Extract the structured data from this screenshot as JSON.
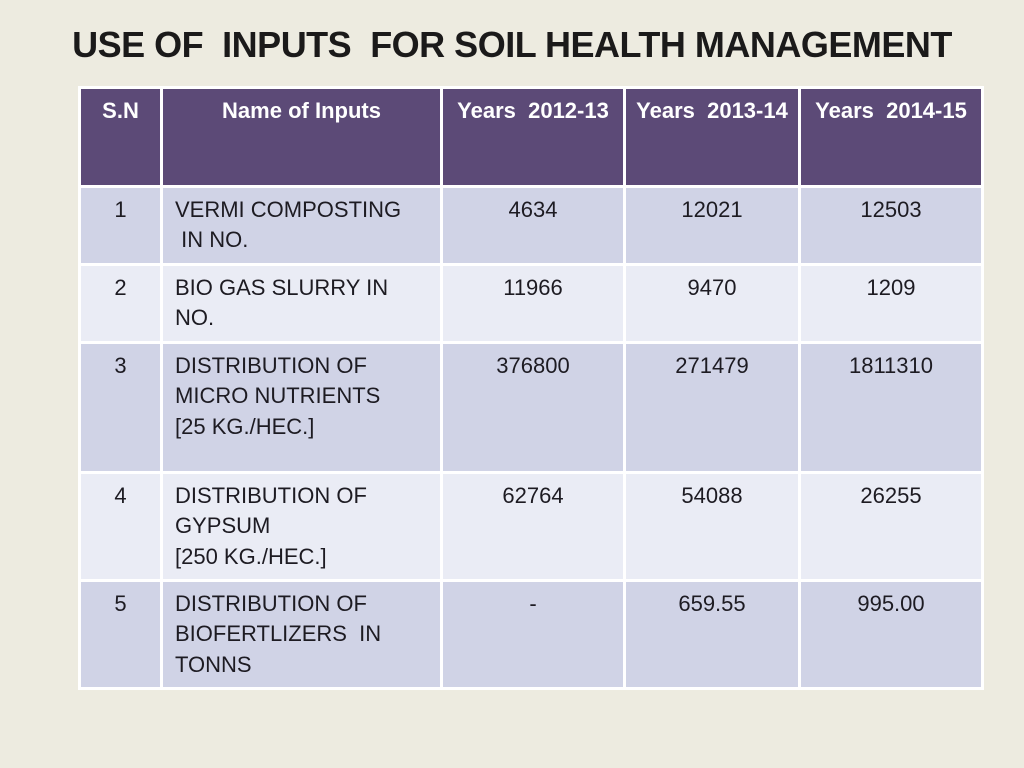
{
  "slide": {
    "title": "USE OF  INPUTS  FOR SOIL HEALTH MANAGEMENT",
    "colors": {
      "background": "#edebe0",
      "header_bg": "#5c4a77",
      "header_text": "#ffffff",
      "row_odd_bg": "#d0d3e6",
      "row_even_bg": "#eaecf5",
      "border": "#ffffff",
      "body_text": "#1d1b22",
      "title_text": "#1b1a1a"
    },
    "table": {
      "columns": [
        "S.N",
        "Name of Inputs",
        "Years  2012-13",
        "Years  2013-14",
        "Years  2014-15"
      ],
      "rows": [
        {
          "sn": "1",
          "name": "VERMI COMPOSTING\n IN NO.",
          "values": [
            "4634",
            "12021",
            "12503"
          ]
        },
        {
          "sn": "2",
          "name": "BIO GAS SLURRY IN NO.",
          "values": [
            "11966",
            "9470",
            "1209"
          ]
        },
        {
          "sn": "3",
          "name": "DISTRIBUTION OF\nMICRO NUTRIENTS\n[25 KG./HEC.]",
          "values": [
            "376800",
            "271479",
            "1811310"
          ]
        },
        {
          "sn": "4",
          "name": "DISTRIBUTION OF\nGYPSUM\n[250 KG./HEC.]",
          "values": [
            "62764",
            "54088",
            "26255"
          ]
        },
        {
          "sn": "5",
          "name": "DISTRIBUTION OF\nBIOFERTLIZERS  IN\nTONNS",
          "values": [
            "-",
            "659.55",
            "995.00"
          ]
        }
      ]
    }
  }
}
